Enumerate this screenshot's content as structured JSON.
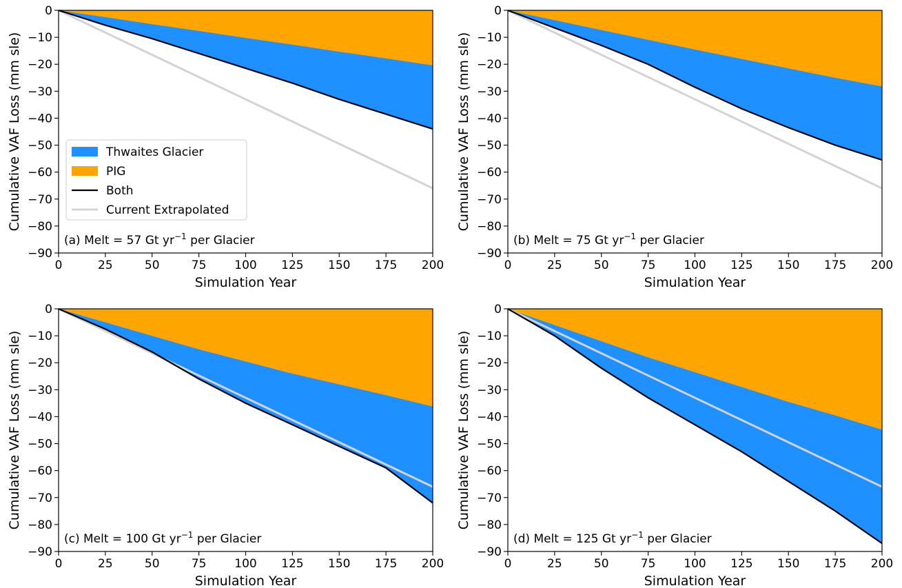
{
  "colors": {
    "thwaites": "#1e90ff",
    "pig": "#ffa500",
    "both": "#000000",
    "extrapolated": "#d3d3d3"
  },
  "legend": {
    "panel": 0,
    "placement": "center-left",
    "items": [
      {
        "key": "thwaites",
        "label": "Thwaites Glacier",
        "kind": "patch"
      },
      {
        "key": "pig",
        "label": "PIG",
        "kind": "patch"
      },
      {
        "key": "both",
        "label": "Both",
        "kind": "line"
      },
      {
        "key": "extrapolated",
        "label": "Current Extrapolated",
        "kind": "line"
      }
    ]
  },
  "chart_data": [
    {
      "type": "area",
      "panel": "a",
      "annotation": {
        "prefix": "(a) Melt = 57 Gt yr",
        "sup": "−1",
        "suffix": " per Glacier"
      },
      "xlabel": "Simulation Year",
      "ylabel": "Cumulative VAF Loss (mm sle)",
      "xlim": [
        0,
        200
      ],
      "ylim": [
        -90,
        0
      ],
      "xticks": [
        0,
        25,
        50,
        75,
        100,
        125,
        150,
        175,
        200
      ],
      "yticks": [
        0,
        -10,
        -20,
        -30,
        -40,
        -50,
        -60,
        -70,
        -80,
        -90
      ],
      "x": [
        0,
        25,
        50,
        75,
        100,
        125,
        150,
        175,
        200
      ],
      "series": [
        {
          "name": "PIG",
          "values": [
            0,
            -2.5,
            -5.1,
            -7.6,
            -10.2,
            -12.7,
            -15.3,
            -17.8,
            -20.4
          ]
        },
        {
          "name": "Both",
          "values": [
            0,
            -5.5,
            -10.5,
            -16,
            -21.5,
            -27,
            -33,
            -38.5,
            -44
          ]
        },
        {
          "name": "Current Extrapolated",
          "values": [
            0,
            -8.25,
            -16.5,
            -24.75,
            -33,
            -41.25,
            -49.5,
            -57.75,
            -66
          ]
        }
      ]
    },
    {
      "type": "area",
      "panel": "b",
      "annotation": {
        "prefix": "(b) Melt = 75 Gt yr",
        "sup": "−1",
        "suffix": " per Glacier"
      },
      "xlabel": "Simulation Year",
      "ylabel": "Cumulative VAF Loss (mm sle)",
      "xlim": [
        0,
        200
      ],
      "ylim": [
        -90,
        0
      ],
      "xticks": [
        0,
        25,
        50,
        75,
        100,
        125,
        150,
        175,
        200
      ],
      "yticks": [
        0,
        -10,
        -20,
        -30,
        -40,
        -50,
        -60,
        -70,
        -80,
        -90
      ],
      "x": [
        0,
        25,
        50,
        75,
        100,
        125,
        150,
        175,
        200
      ],
      "series": [
        {
          "name": "PIG",
          "values": [
            0,
            -3.6,
            -7.3,
            -10.9,
            -14.5,
            -18,
            -21.5,
            -25,
            -28.2
          ]
        },
        {
          "name": "Both",
          "values": [
            0,
            -6.5,
            -13,
            -20,
            -28.5,
            -36.5,
            -43.5,
            -50,
            -55.5
          ]
        },
        {
          "name": "Current Extrapolated",
          "values": [
            0,
            -8.25,
            -16.5,
            -24.75,
            -33,
            -41.25,
            -49.5,
            -57.75,
            -66
          ]
        }
      ]
    },
    {
      "type": "area",
      "panel": "c",
      "annotation": {
        "prefix": "(c) Melt = 100 Gt yr",
        "sup": "−1",
        "suffix": " per Glacier"
      },
      "xlabel": "Simulation Year",
      "ylabel": "Cumulative VAF Loss (mm sle)",
      "xlim": [
        0,
        200
      ],
      "ylim": [
        -90,
        0
      ],
      "xticks": [
        0,
        25,
        50,
        75,
        100,
        125,
        150,
        175,
        200
      ],
      "yticks": [
        0,
        -10,
        -20,
        -30,
        -40,
        -50,
        -60,
        -70,
        -80,
        -90
      ],
      "x": [
        0,
        25,
        50,
        75,
        100,
        125,
        150,
        175,
        200
      ],
      "series": [
        {
          "name": "PIG",
          "values": [
            0,
            -5,
            -10,
            -15,
            -19.5,
            -24,
            -28,
            -32,
            -36.2
          ]
        },
        {
          "name": "Both",
          "values": [
            0,
            -7.5,
            -16,
            -26,
            -35,
            -43,
            -51,
            -59,
            -72
          ]
        },
        {
          "name": "Current Extrapolated",
          "values": [
            0,
            -8.25,
            -16.5,
            -24.75,
            -33,
            -41.25,
            -49.5,
            -57.75,
            -66
          ]
        }
      ]
    },
    {
      "type": "area",
      "panel": "d",
      "annotation": {
        "prefix": "(d) Melt = 125 Gt yr",
        "sup": "−1",
        "suffix": " per Glacier"
      },
      "xlabel": "Simulation Year",
      "ylabel": "Cumulative VAF Loss (mm sle)",
      "xlim": [
        0,
        200
      ],
      "ylim": [
        -90,
        0
      ],
      "xticks": [
        0,
        25,
        50,
        75,
        100,
        125,
        150,
        175,
        200
      ],
      "yticks": [
        0,
        -10,
        -20,
        -30,
        -40,
        -50,
        -60,
        -70,
        -80,
        -90
      ],
      "x": [
        0,
        25,
        50,
        75,
        100,
        125,
        150,
        175,
        200
      ],
      "series": [
        {
          "name": "PIG",
          "values": [
            0,
            -6,
            -12,
            -18,
            -23.5,
            -29,
            -34.5,
            -39.5,
            -44.8
          ]
        },
        {
          "name": "Both",
          "values": [
            0,
            -10,
            -22,
            -33,
            -43,
            -53,
            -64,
            -75,
            -87
          ]
        },
        {
          "name": "Current Extrapolated",
          "values": [
            0,
            -8.25,
            -16.5,
            -24.75,
            -33,
            -41.25,
            -49.5,
            -57.75,
            -66
          ]
        }
      ]
    }
  ]
}
